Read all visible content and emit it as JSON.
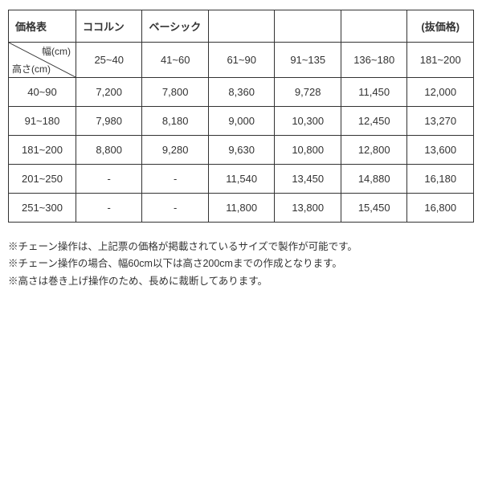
{
  "header": {
    "title": "価格表",
    "subtitle1": "ココルン",
    "subtitle2": "ベーシック",
    "right": "(抜価格)"
  },
  "diag": {
    "top": "幅(cm)",
    "bottom": "高さ(cm)"
  },
  "width_ranges": [
    "25~40",
    "41~60",
    "61~90",
    "91~135",
    "136~180",
    "181~200"
  ],
  "rows": [
    {
      "label": "40~90",
      "cells": [
        "7,200",
        "7,800",
        "8,360",
        "9,728",
        "11,450",
        "12,000"
      ]
    },
    {
      "label": "91~180",
      "cells": [
        "7,980",
        "8,180",
        "9,000",
        "10,300",
        "12,450",
        "13,270"
      ]
    },
    {
      "label": "181~200",
      "cells": [
        "8,800",
        "9,280",
        "9,630",
        "10,800",
        "12,800",
        "13,600"
      ]
    },
    {
      "label": "201~250",
      "cells": [
        "-",
        "-",
        "11,540",
        "13,450",
        "14,880",
        "16,180"
      ]
    },
    {
      "label": "251~300",
      "cells": [
        "-",
        "-",
        "11,800",
        "13,800",
        "15,450",
        "16,800"
      ]
    }
  ],
  "notes": [
    "※チェーン操作は、上記票の価格が掲載されているサイズで製作が可能です。",
    "※チェーン操作の場合、幅60cm以下は高さ200cmまでの作成となります。",
    "※高さは巻き上げ操作のため、長めに裁断してあります。"
  ]
}
